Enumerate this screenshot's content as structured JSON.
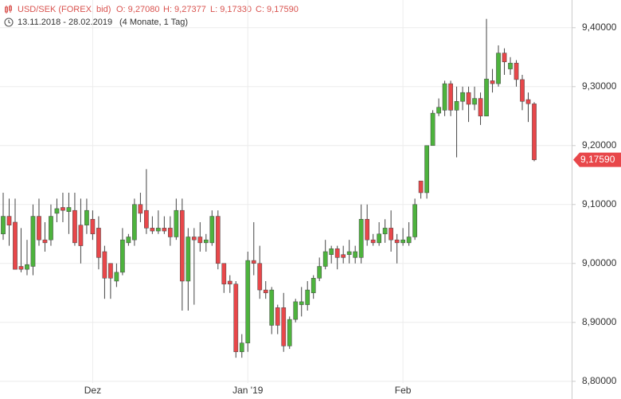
{
  "chart_data": {
    "type": "candlestick",
    "title": "USD/SEK (FOREX, bid)",
    "quote": [
      "O: 9,27080",
      "H: 9,27377",
      "L: 9,17330",
      "C: 9,17590"
    ],
    "period": "13.11.2018 - 28.02.2019",
    "duration": "(4 Monate, 1 Tag)",
    "categories": [
      null,
      null,
      null,
      null,
      null,
      null,
      null,
      null,
      null,
      null,
      null,
      null,
      null,
      null,
      null,
      "Dez",
      null,
      null,
      null,
      null,
      null,
      null,
      null,
      null,
      null,
      null,
      null,
      null,
      null,
      null,
      null,
      null,
      null,
      null,
      null,
      null,
      null,
      null,
      null,
      null,
      null,
      "Jan '19",
      null,
      null,
      null,
      null,
      null,
      null,
      null,
      null,
      null,
      null,
      null,
      null,
      null,
      null,
      null,
      null,
      null,
      null,
      null,
      null,
      null,
      null,
      null,
      null,
      null,
      "Feb",
      null,
      null,
      null,
      null,
      null,
      null,
      null,
      null,
      null,
      null,
      null,
      null,
      null,
      null,
      null,
      null,
      null,
      null,
      null,
      null,
      null,
      null
    ],
    "open": [
      9.05,
      9.08,
      9.07,
      8.995,
      8.99,
      8.995,
      9.08,
      9.04,
      9.04,
      9.085,
      9.095,
      9.088,
      9.09,
      9.065,
      9.065,
      9.075,
      9.06,
      9.02,
      9.0,
      8.97,
      8.985,
      9.035,
      9.04,
      9.1,
      9.09,
      9.06,
      9.055,
      9.06,
      9.06,
      9.045,
      9.09,
      8.97,
      9.045,
      9.045,
      9.035,
      9.035,
      9.08,
      9.0,
      8.97,
      8.965,
      8.85,
      8.865,
      9.005,
      9.0,
      8.955,
      8.895,
      8.925,
      8.925,
      8.86,
      8.905,
      8.93,
      8.93,
      8.95,
      8.975,
      8.995,
      9.015,
      9.025,
      9.015,
      9.015,
      9.01,
      9.01,
      9.075,
      9.04,
      9.035,
      9.05,
      9.06,
      9.04,
      9.035,
      9.035,
      9.045,
      9.14,
      9.12,
      9.2,
      9.255,
      9.26,
      9.305,
      9.26,
      9.275,
      9.29,
      9.27,
      9.28,
      9.25,
      9.31,
      9.305,
      9.357,
      9.33,
      9.34,
      9.312,
      9.278,
      9.2708
    ],
    "high": [
      9.12,
      9.11,
      9.11,
      9.06,
      9.04,
      9.1,
      9.11,
      9.07,
      9.1,
      9.11,
      9.12,
      9.12,
      9.12,
      9.11,
      9.11,
      9.09,
      9.08,
      9.03,
      9.0,
      9.0,
      9.06,
      9.05,
      9.11,
      9.12,
      9.16,
      9.08,
      9.09,
      9.08,
      9.08,
      9.11,
      9.11,
      9.06,
      9.06,
      9.07,
      9.05,
      9.09,
      9.09,
      9.0,
      8.98,
      8.97,
      8.88,
      9.02,
      9.07,
      9.03,
      8.97,
      8.96,
      8.93,
      8.95,
      8.91,
      8.94,
      8.96,
      8.97,
      8.98,
      9.01,
      9.04,
      9.03,
      9.03,
      9.03,
      9.04,
      9.03,
      9.1,
      9.1,
      9.05,
      9.07,
      9.075,
      9.09,
      9.05,
      9.06,
      9.07,
      9.11,
      9.14,
      9.2,
      9.26,
      9.28,
      9.31,
      9.31,
      9.3,
      9.3,
      9.3,
      9.3,
      9.29,
      9.415,
      9.33,
      9.37,
      9.365,
      9.35,
      9.345,
      9.32,
      9.29,
      9.27377
    ],
    "low": [
      9.04,
      9.03,
      8.99,
      8.985,
      8.98,
      8.98,
      9.03,
      9.02,
      9.03,
      9.07,
      9.07,
      9.05,
      9.03,
      9.0,
      9.05,
      9.04,
      8.99,
      8.94,
      8.94,
      8.96,
      8.98,
      9.03,
      9.03,
      9.07,
      9.05,
      9.05,
      9.05,
      9.05,
      9.03,
      9.04,
      8.92,
      8.92,
      8.93,
      9.02,
      9.02,
      9.03,
      8.99,
      8.95,
      8.95,
      8.84,
      8.84,
      8.85,
      8.98,
      8.94,
      8.94,
      8.88,
      8.88,
      8.85,
      8.855,
      8.9,
      8.91,
      8.92,
      8.94,
      8.97,
      8.99,
      9.0,
      8.99,
      9.0,
      9.0,
      9.0,
      9.0,
      9.03,
      9.03,
      9.03,
      9.035,
      9.02,
      9.0,
      9.03,
      9.03,
      9.04,
      9.11,
      9.11,
      9.2,
      9.25,
      9.25,
      9.25,
      9.18,
      9.26,
      9.24,
      9.26,
      9.235,
      9.25,
      9.29,
      9.3,
      9.32,
      9.32,
      9.3,
      9.26,
      9.24,
      9.1733
    ],
    "close": [
      9.08,
      9.065,
      8.99,
      8.99,
      8.998,
      9.08,
      9.04,
      9.035,
      9.08,
      9.093,
      9.09,
      9.095,
      9.035,
      9.03,
      9.09,
      9.05,
      9.01,
      8.975,
      8.975,
      8.985,
      9.04,
      9.045,
      9.1,
      9.085,
      9.06,
      9.055,
      9.06,
      9.055,
      9.045,
      9.09,
      8.97,
      9.045,
      9.04,
      9.035,
      9.04,
      9.08,
      9.0,
      8.965,
      8.965,
      8.85,
      8.865,
      9.005,
      9.0,
      8.955,
      8.95,
      8.955,
      8.895,
      8.86,
      8.905,
      8.935,
      8.935,
      8.955,
      8.975,
      8.995,
      9.02,
      9.025,
      9.01,
      9.01,
      9.02,
      9.02,
      9.075,
      9.04,
      9.035,
      9.05,
      9.06,
      9.04,
      9.035,
      9.04,
      9.045,
      9.1,
      9.12,
      9.2,
      9.255,
      9.265,
      9.305,
      9.26,
      9.275,
      9.29,
      9.27,
      9.28,
      9.25,
      9.313,
      9.305,
      9.357,
      9.342,
      9.34,
      9.312,
      9.275,
      9.271,
      9.1759
    ],
    "up_color": "#4db33d",
    "down_color": "#e8474a",
    "ylim": [
      8.797,
      9.447
    ],
    "yticks": [
      {
        "value": 8.8,
        "label": "8,80000"
      },
      {
        "value": 8.9,
        "label": "8,90000"
      },
      {
        "value": 9.0,
        "label": "9,00000"
      },
      {
        "value": 9.1,
        "label": "9,10000"
      },
      {
        "value": 9.2,
        "label": "9,20000"
      },
      {
        "value": 9.3,
        "label": "9,30000"
      },
      {
        "value": 9.4,
        "label": "9,40000"
      }
    ],
    "last_price": {
      "value": 9.1759,
      "label": "9,17590"
    },
    "grid": true
  }
}
